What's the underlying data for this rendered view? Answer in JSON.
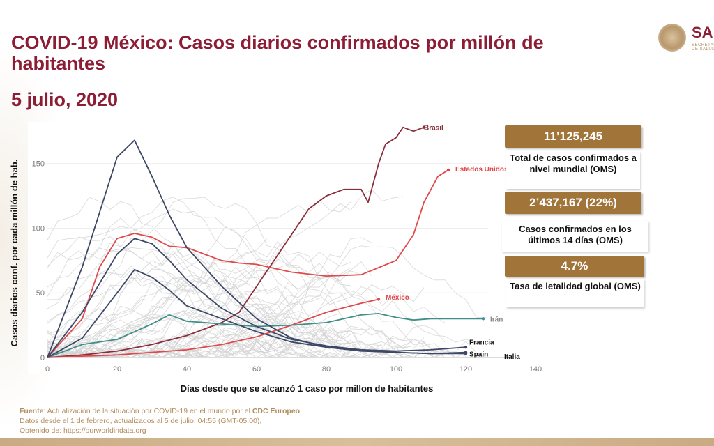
{
  "header": {
    "title": "COVID-19 México: Casos diarios confirmados por millón de habitantes",
    "date": "5 julio, 2020",
    "logo_text": "SA",
    "logo_sub": "SECRETARÍA DE SALUD"
  },
  "stats": [
    {
      "value": "11’125,245",
      "label": "Total de casos confirmados a nivel mundial (OMS)"
    },
    {
      "value": "2’437,167 (22%)",
      "label": "Casos confirmados en los últimos 14 días (OMS)"
    },
    {
      "value": "4.7%",
      "label": "Tasa de letalidad global (OMS)"
    }
  ],
  "footer": {
    "source_label": "Fuente",
    "source_text": ": Actualización de la situación por COVID-19 en el mundo por el ",
    "source_org": "CDC Europeo",
    "line2": "Datos desde el 1 de febrero, actualizados al 5 de julio, 04:55 (GMT-05:00),",
    "line3": "Obtenido de: https://ourworldindata.org"
  },
  "colors": {
    "accent": "#8c1d35",
    "gold": "#a1743a",
    "brasil": "#8b2e3c",
    "usa": "#e0484a",
    "mexico": "#e0484a",
    "iran": "#3e8e8a",
    "europe": "#3d4866",
    "background_lines": "#cfcfcf"
  },
  "chart_data": {
    "type": "line",
    "title": "",
    "xlabel": "Días desde que se alcanzó 1 caso por millon de habitantes",
    "ylabel": "Casos diarios conf. por cada millón de hab.",
    "xlim": [
      0,
      140
    ],
    "ylim": [
      0,
      180
    ],
    "xticks": [
      0,
      20,
      40,
      60,
      80,
      100,
      120,
      140
    ],
    "yticks": [
      0,
      50,
      100,
      150
    ],
    "series": [
      {
        "name": "Brasil",
        "color": "#8b2e3c",
        "x": [
          0,
          10,
          20,
          30,
          40,
          50,
          55,
          60,
          65,
          70,
          75,
          80,
          85,
          90,
          92,
          95,
          97,
          100,
          102,
          105,
          108
        ],
        "y": [
          0,
          2,
          5,
          10,
          17,
          27,
          35,
          55,
          75,
          95,
          115,
          125,
          130,
          130,
          120,
          150,
          165,
          170,
          178,
          175,
          178
        ]
      },
      {
        "name": "Estados Unidos",
        "color": "#e0484a",
        "x": [
          0,
          10,
          15,
          20,
          25,
          30,
          35,
          40,
          45,
          50,
          55,
          60,
          70,
          80,
          90,
          100,
          105,
          108,
          112,
          115
        ],
        "y": [
          0,
          30,
          70,
          92,
          96,
          93,
          86,
          85,
          80,
          75,
          73,
          72,
          66,
          63,
          64,
          75,
          95,
          120,
          140,
          145
        ]
      },
      {
        "name": "México",
        "color": "#e0484a",
        "x": [
          0,
          20,
          40,
          50,
          60,
          70,
          80,
          90,
          95
        ],
        "y": [
          0,
          2,
          6,
          10,
          16,
          25,
          35,
          42,
          45
        ]
      },
      {
        "name": "Irán",
        "color": "#3e8e8a",
        "x": [
          0,
          10,
          20,
          25,
          30,
          35,
          40,
          50,
          60,
          70,
          80,
          90,
          95,
          100,
          105,
          110,
          115,
          120,
          125
        ],
        "y": [
          0,
          10,
          14,
          20,
          26,
          33,
          28,
          26,
          24,
          25,
          27,
          33,
          34,
          31,
          29,
          30,
          30,
          30,
          30
        ]
      },
      {
        "name": "Francia",
        "color": "#3d4866",
        "x": [
          0,
          10,
          20,
          25,
          30,
          35,
          40,
          50,
          60,
          70,
          80,
          90,
          100,
          110,
          120
        ],
        "y": [
          0,
          15,
          50,
          68,
          62,
          52,
          40,
          30,
          20,
          12,
          8,
          6,
          5,
          6,
          8
        ]
      },
      {
        "name": "Spain",
        "color": "#3d4866",
        "x": [
          0,
          10,
          20,
          25,
          30,
          35,
          40,
          50,
          60,
          70,
          80,
          90,
          100,
          110,
          120
        ],
        "y": [
          0,
          70,
          155,
          168,
          140,
          110,
          85,
          55,
          30,
          15,
          8,
          5,
          4,
          3,
          4
        ]
      },
      {
        "name": "Italia",
        "color": "#3d4866",
        "x": [
          0,
          10,
          20,
          25,
          30,
          35,
          40,
          50,
          60,
          70,
          80,
          90,
          100,
          110,
          120
        ],
        "y": [
          0,
          35,
          80,
          92,
          88,
          75,
          60,
          38,
          24,
          14,
          9,
          6,
          4,
          3,
          3
        ]
      }
    ],
    "labels": [
      {
        "text": "Brasil",
        "x": 108,
        "y": 178
      },
      {
        "text": "Estados Unidos",
        "x": 117,
        "y": 146
      },
      {
        "text": "México",
        "x": 97,
        "y": 47
      },
      {
        "text": "Irán",
        "x": 127,
        "y": 30
      },
      {
        "text": "Francia",
        "x": 121,
        "y": 12
      },
      {
        "text": "Spain",
        "x": 121,
        "y": 3
      },
      {
        "text": "Italia",
        "x": 131,
        "y": 1
      }
    ]
  }
}
